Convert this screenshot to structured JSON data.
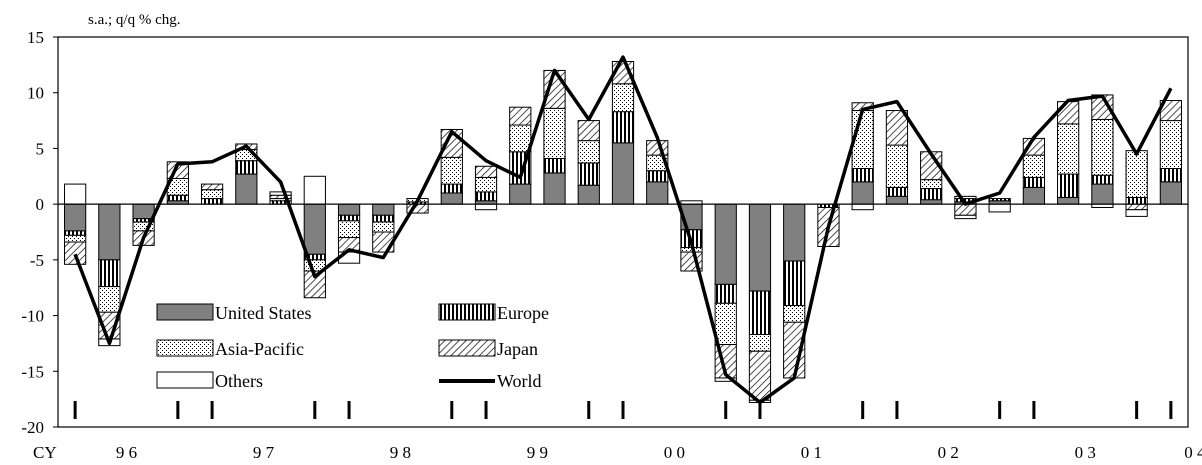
{
  "chart_data": {
    "type": "bar",
    "subtype": "stacked-bar-with-line",
    "unit_label": "s.a.; q/q % chg.",
    "ylim": [
      -20,
      15
    ],
    "y_ticks": [
      15,
      10,
      5,
      0,
      -5,
      -10,
      -15,
      -20
    ],
    "grid": false,
    "legend_placement": "bottom-left",
    "x_axis_prefix": "CY",
    "year_labels": [
      "9 6",
      "9 7",
      "9 8",
      "9 9",
      "0 0",
      "0 1",
      "0 2",
      "0 3",
      "0 4"
    ],
    "quarters": 33,
    "colors": {
      "united_states": "#808080",
      "europe": "#ffffff",
      "asia_pacific": "#ffffff",
      "japan": "#ffffff",
      "others": "#ffffff",
      "world": "#000000"
    },
    "series": [
      {
        "name": "United States",
        "pattern": "solid-gray",
        "values": [
          -2.4,
          -5.0,
          -1.3,
          0.3,
          0.0,
          2.7,
          0.0,
          -4.5,
          -1.0,
          -1.0,
          0.0,
          1.0,
          0.3,
          1.8,
          2.8,
          1.7,
          5.5,
          2.0,
          -2.3,
          -7.2,
          -7.8,
          -5.1,
          0.0,
          2.0,
          0.7,
          0.4,
          0.2,
          0.3,
          1.5,
          0.6,
          1.8,
          0.0,
          2.0
        ]
      },
      {
        "name": "Europe",
        "pattern": "vertical-stripes",
        "values": [
          -0.4,
          -2.4,
          -0.3,
          0.5,
          0.5,
          1.2,
          0.3,
          -0.5,
          -0.5,
          -0.6,
          0.2,
          0.8,
          0.8,
          2.9,
          1.3,
          2.0,
          2.8,
          1.0,
          -1.6,
          -1.7,
          -3.9,
          -4.0,
          -0.3,
          1.2,
          0.8,
          1.0,
          0.3,
          0.2,
          0.9,
          2.1,
          0.8,
          0.6,
          1.2
        ]
      },
      {
        "name": "Asia-Pacific",
        "pattern": "dots",
        "values": [
          -0.6,
          -2.3,
          -0.8,
          1.5,
          0.8,
          1.0,
          0.2,
          -1.0,
          -1.5,
          -0.9,
          0.3,
          2.4,
          1.3,
          2.4,
          4.5,
          2.0,
          2.5,
          1.4,
          -0.4,
          -3.7,
          -1.5,
          -1.5,
          0.0,
          5.2,
          3.8,
          0.8,
          0.2,
          0.0,
          2.0,
          4.5,
          5.0,
          4.2,
          4.3
        ]
      },
      {
        "name": "Japan",
        "pattern": "diagonal-hatch",
        "values": [
          -2.0,
          -2.4,
          -1.3,
          1.5,
          0.5,
          0.5,
          0.3,
          -2.4,
          -1.3,
          -1.8,
          -0.8,
          2.5,
          1.0,
          1.6,
          3.4,
          1.8,
          2.0,
          1.3,
          -1.7,
          -3.0,
          -4.4,
          -5.0,
          -3.5,
          0.7,
          3.1,
          2.5,
          -1.0,
          0.0,
          1.5,
          2.0,
          2.2,
          -0.5,
          1.8
        ]
      },
      {
        "name": "Others",
        "pattern": "blank",
        "values": [
          1.8,
          -0.6,
          0.0,
          0.0,
          0.0,
          0.0,
          0.3,
          2.5,
          -1.0,
          0.0,
          0.0,
          0.0,
          -0.5,
          0.0,
          0.0,
          0.0,
          0.0,
          0.0,
          0.3,
          -0.3,
          -0.2,
          0.0,
          0.0,
          -0.5,
          0.0,
          0.0,
          -0.3,
          -0.7,
          0.0,
          0.0,
          -0.3,
          -0.6,
          0.0
        ]
      },
      {
        "name": "World",
        "pattern": "line",
        "values": [
          -4.5,
          -12.5,
          -3.0,
          3.6,
          3.8,
          5.2,
          2.0,
          -6.5,
          -4.1,
          -4.8,
          0.3,
          6.5,
          3.9,
          2.4,
          12.0,
          7.6,
          13.2,
          6.0,
          -3.5,
          -15.3,
          -17.8,
          -15.6,
          -2.0,
          8.5,
          9.2,
          4.5,
          0.0,
          1.0,
          6.0,
          9.3,
          9.7,
          4.5,
          10.4
        ]
      }
    ]
  }
}
